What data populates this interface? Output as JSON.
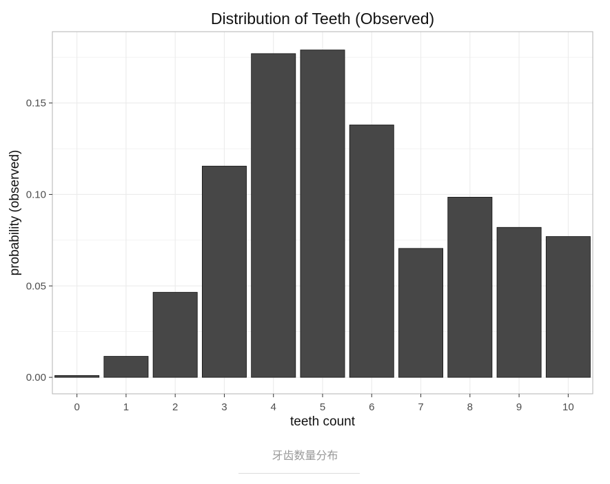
{
  "chart_data": {
    "type": "bar",
    "title": "Distribution of Teeth (Observed)",
    "xlabel": "teeth count",
    "ylabel": "probability (observed)",
    "categories": [
      "0",
      "1",
      "2",
      "3",
      "4",
      "5",
      "6",
      "7",
      "8",
      "9",
      "10"
    ],
    "values": [
      0.001,
      0.0115,
      0.0465,
      0.1155,
      0.177,
      0.179,
      0.138,
      0.0705,
      0.0985,
      0.082,
      0.077
    ],
    "y_ticks": [
      0.0,
      0.05,
      0.1,
      0.15
    ],
    "y_tick_labels": [
      "0.00",
      "0.05",
      "0.10",
      "0.15"
    ],
    "ylim": [
      -0.009,
      0.189
    ],
    "grid": true,
    "legend": "none",
    "colors": {
      "bar": "#474747",
      "bar_outline": "#111111",
      "grid": "#ebebeb",
      "panel_border": "#b3b3b3"
    }
  },
  "caption": "牙齿数量分布"
}
